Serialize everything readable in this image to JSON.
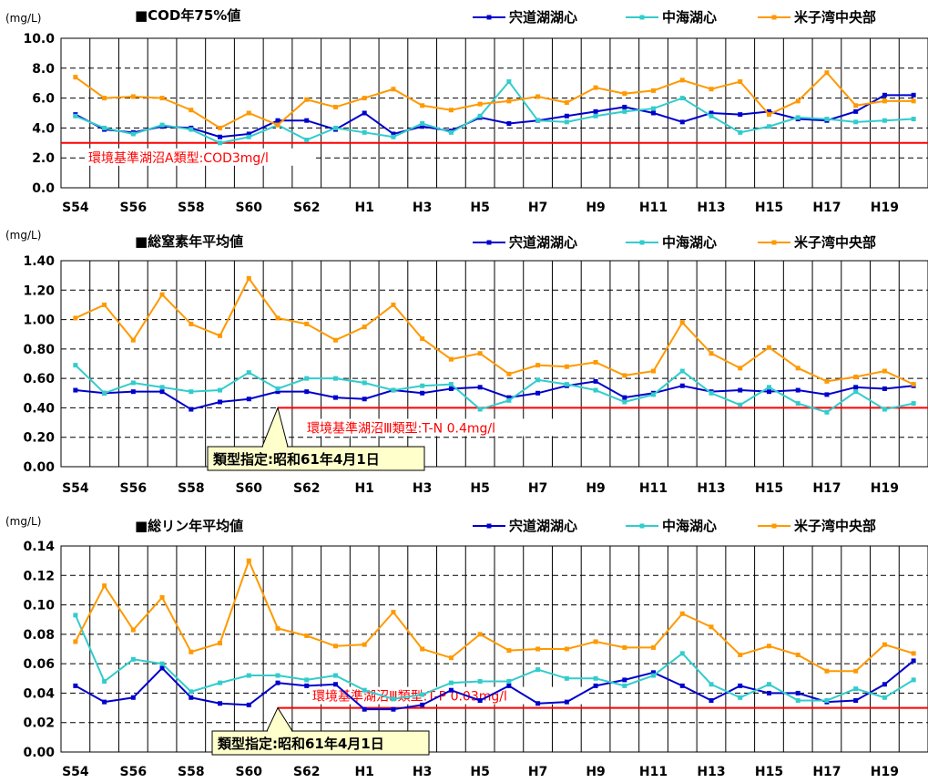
{
  "chart_data": [
    {
      "type": "line",
      "title": "■COD年75%値",
      "unit": "(mg/L)",
      "ylim": [
        0,
        10
      ],
      "yticks": [
        "0.0",
        "2.0",
        "4.0",
        "6.0",
        "8.0",
        "10.0"
      ],
      "x_tick_labels": [
        "S54",
        "S56",
        "S58",
        "S60",
        "S62",
        "H1",
        "H3",
        "H5",
        "H7",
        "H9",
        "H11",
        "H13",
        "H15",
        "H17",
        "H19"
      ],
      "x": [
        "S54",
        "S55",
        "S56",
        "S57",
        "S58",
        "S59",
        "S60",
        "S61",
        "S62",
        "S63",
        "H1",
        "H2",
        "H3",
        "H4",
        "H5",
        "H6",
        "H7",
        "H8",
        "H9",
        "H10",
        "H11",
        "H12",
        "H13",
        "H14",
        "H15",
        "H16",
        "H17",
        "H18",
        "H19",
        "H20"
      ],
      "legend_position": "top-right",
      "series": [
        {
          "name": "宍道湖湖心",
          "color": "#0000cc",
          "values": [
            4.9,
            3.9,
            3.7,
            4.1,
            4.0,
            3.4,
            3.6,
            4.5,
            4.5,
            3.9,
            5.0,
            3.6,
            4.1,
            3.8,
            4.7,
            4.3,
            4.5,
            4.8,
            5.1,
            5.4,
            5.0,
            4.4,
            5.0,
            4.9,
            5.1,
            4.6,
            4.5,
            5.1,
            6.2,
            6.2
          ]
        },
        {
          "name": "中海湖心",
          "color": "#33cccc",
          "values": [
            4.8,
            4.0,
            3.6,
            4.2,
            3.9,
            3.0,
            3.4,
            4.2,
            3.2,
            4.0,
            3.7,
            3.4,
            4.3,
            3.7,
            4.8,
            7.1,
            4.5,
            4.4,
            4.8,
            5.1,
            5.3,
            6.0,
            4.8,
            3.7,
            4.1,
            4.7,
            4.6,
            4.4,
            4.5,
            4.6
          ]
        },
        {
          "name": "米子湾中央部",
          "color": "#ff9900",
          "values": [
            7.4,
            6.0,
            6.1,
            6.0,
            5.2,
            4.0,
            5.0,
            4.2,
            5.9,
            5.4,
            6.0,
            6.6,
            5.5,
            5.2,
            5.6,
            5.8,
            6.1,
            5.7,
            6.7,
            6.3,
            6.5,
            7.2,
            6.6,
            7.1,
            4.9,
            5.8,
            7.7,
            5.5,
            5.8,
            5.8
          ]
        }
      ],
      "standard": {
        "value": 3.0,
        "label": "環境基準湖沼A類型:COD3mg/l",
        "color": "#ff0000"
      }
    },
    {
      "type": "line",
      "title": "■総窒素年平均値",
      "unit": "(mg/L)",
      "ylim": [
        0,
        1.4
      ],
      "yticks": [
        "0.00",
        "0.20",
        "0.40",
        "0.60",
        "0.80",
        "1.00",
        "1.20",
        "1.40"
      ],
      "x_tick_labels": [
        "S54",
        "S56",
        "S58",
        "S60",
        "S62",
        "H1",
        "H3",
        "H5",
        "H7",
        "H9",
        "H11",
        "H13",
        "H15",
        "H17",
        "H19"
      ],
      "x": [
        "S54",
        "S55",
        "S56",
        "S57",
        "S58",
        "S59",
        "S60",
        "S61",
        "S62",
        "S63",
        "H1",
        "H2",
        "H3",
        "H4",
        "H5",
        "H6",
        "H7",
        "H8",
        "H9",
        "H10",
        "H11",
        "H12",
        "H13",
        "H14",
        "H15",
        "H16",
        "H17",
        "H18",
        "H19",
        "H20"
      ],
      "legend_position": "top-right",
      "series": [
        {
          "name": "宍道湖湖心",
          "color": "#0000cc",
          "values": [
            0.52,
            0.5,
            0.51,
            0.51,
            0.39,
            0.44,
            0.46,
            0.51,
            0.51,
            0.47,
            0.46,
            0.52,
            0.5,
            0.53,
            0.54,
            0.47,
            0.5,
            0.55,
            0.58,
            0.47,
            0.5,
            0.55,
            0.51,
            0.52,
            0.51,
            0.52,
            0.49,
            0.54,
            0.53,
            0.55
          ]
        },
        {
          "name": "中海湖心",
          "color": "#33cccc",
          "values": [
            0.69,
            0.5,
            0.57,
            0.54,
            0.51,
            0.52,
            0.64,
            0.53,
            0.6,
            0.6,
            0.57,
            0.52,
            0.55,
            0.56,
            0.39,
            0.45,
            0.59,
            0.56,
            0.52,
            0.44,
            0.49,
            0.65,
            0.5,
            0.42,
            0.54,
            0.43,
            0.37,
            0.51,
            0.39,
            0.43
          ]
        },
        {
          "name": "米子湾中央部",
          "color": "#ff9900",
          "values": [
            1.01,
            1.1,
            0.86,
            1.17,
            0.97,
            0.89,
            1.28,
            1.01,
            0.97,
            0.86,
            0.95,
            1.1,
            0.87,
            0.73,
            0.77,
            0.63,
            0.69,
            0.68,
            0.71,
            0.62,
            0.65,
            0.98,
            0.77,
            0.67,
            0.81,
            0.67,
            0.58,
            0.61,
            0.65,
            0.56
          ]
        }
      ],
      "standard": {
        "value": 0.4,
        "start": "S61",
        "label": "環境基準湖沼Ⅲ類型:T-N 0.4mg/l",
        "color": "#ff0000"
      },
      "callout": {
        "label": "類型指定:昭和61年4月1日",
        "anchor": "S61"
      }
    },
    {
      "type": "line",
      "title": "■総リン年平均値",
      "unit": "(mg/L)",
      "ylim": [
        0,
        0.14
      ],
      "yticks": [
        "0.00",
        "0.02",
        "0.04",
        "0.06",
        "0.08",
        "0.10",
        "0.12",
        "0.14"
      ],
      "x_tick_labels": [
        "S54",
        "S56",
        "S58",
        "S60",
        "S62",
        "H1",
        "H3",
        "H5",
        "H7",
        "H9",
        "H11",
        "H13",
        "H15",
        "H17",
        "H19"
      ],
      "x": [
        "S54",
        "S55",
        "S56",
        "S57",
        "S58",
        "S59",
        "S60",
        "S61",
        "S62",
        "S63",
        "H1",
        "H2",
        "H3",
        "H4",
        "H5",
        "H6",
        "H7",
        "H8",
        "H9",
        "H10",
        "H11",
        "H12",
        "H13",
        "H14",
        "H15",
        "H16",
        "H17",
        "H18",
        "H19",
        "H20"
      ],
      "legend_position": "top-right",
      "series": [
        {
          "name": "宍道湖湖心",
          "color": "#0000cc",
          "values": [
            0.045,
            0.034,
            0.037,
            0.057,
            0.037,
            0.033,
            0.032,
            0.047,
            0.045,
            0.046,
            0.029,
            0.029,
            0.032,
            0.042,
            0.035,
            0.045,
            0.033,
            0.034,
            0.045,
            0.049,
            0.054,
            0.045,
            0.035,
            0.045,
            0.04,
            0.04,
            0.034,
            0.035,
            0.046,
            0.062
          ]
        },
        {
          "name": "中海湖心",
          "color": "#33cccc",
          "values": [
            0.093,
            0.048,
            0.063,
            0.06,
            0.041,
            0.047,
            0.052,
            0.052,
            0.049,
            0.052,
            0.042,
            0.036,
            0.039,
            0.047,
            0.048,
            0.048,
            0.056,
            0.05,
            0.05,
            0.045,
            0.052,
            0.067,
            0.046,
            0.037,
            0.046,
            0.035,
            0.035,
            0.043,
            0.037,
            0.049
          ]
        },
        {
          "name": "米子湾中央部",
          "color": "#ff9900",
          "values": [
            0.075,
            0.113,
            0.083,
            0.105,
            0.068,
            0.074,
            0.13,
            0.084,
            0.079,
            0.072,
            0.073,
            0.095,
            0.07,
            0.064,
            0.08,
            0.069,
            0.07,
            0.07,
            0.075,
            0.071,
            0.071,
            0.094,
            0.085,
            0.066,
            0.072,
            0.066,
            0.055,
            0.055,
            0.073,
            0.067
          ]
        }
      ],
      "standard": {
        "value": 0.03,
        "start": "S61",
        "label": "環境基準湖沼Ⅲ類型:T-P 0.03mg/l",
        "color": "#ff0000"
      },
      "callout": {
        "label": "類型指定:昭和61年4月1日",
        "anchor": "S61"
      }
    }
  ]
}
